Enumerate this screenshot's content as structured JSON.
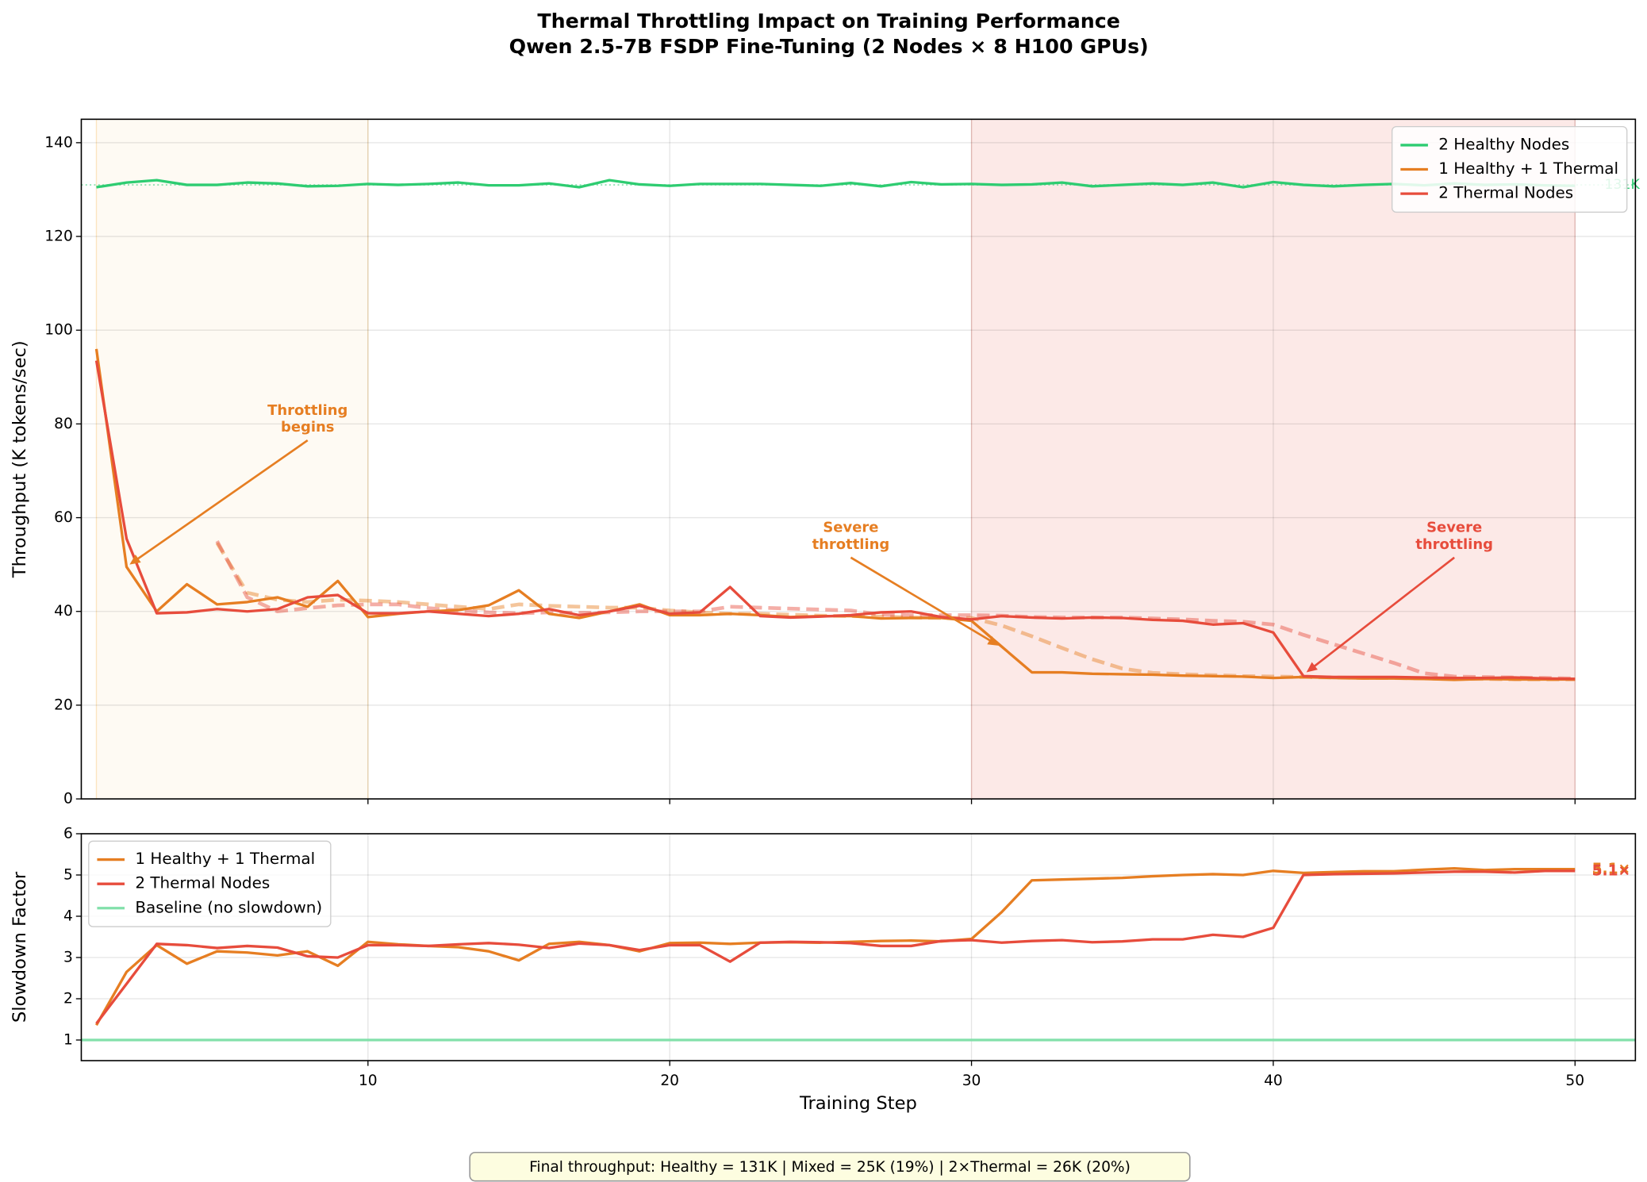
{
  "title": [
    "Thermal Throttling Impact on Training Performance",
    "Qwen 2.5-7B FSDP Fine-Tuning (2 Nodes × 8 H100 GPUs)"
  ],
  "footer": "Final throughput:  Healthy = 131K  |  Mixed = 25K (19%)  |  2×Thermal = 26K (20%)",
  "chart_data": [
    {
      "type": "line",
      "ylabel": "Throughput (K tokens/sec)",
      "x": [
        1,
        2,
        3,
        4,
        5,
        6,
        7,
        8,
        9,
        10,
        11,
        12,
        13,
        14,
        15,
        16,
        17,
        18,
        19,
        20,
        21,
        22,
        23,
        24,
        25,
        26,
        27,
        28,
        29,
        30,
        31,
        32,
        33,
        34,
        35,
        36,
        37,
        38,
        39,
        40,
        41,
        42,
        43,
        44,
        45,
        46,
        47,
        48,
        49,
        50
      ],
      "xlim": [
        0.5,
        52
      ],
      "xticks": [
        10,
        20,
        30,
        40,
        50
      ],
      "ylim": [
        0,
        145
      ],
      "yticks": [
        0,
        20,
        40,
        60,
        80,
        100,
        120,
        140
      ],
      "grid": true,
      "legend": "upper right",
      "spans": [
        {
          "x": [
            1,
            10
          ],
          "color": "#f39c12",
          "opacity": 0.05
        },
        {
          "x": [
            30,
            50
          ],
          "color": "#e74c3c",
          "opacity": 0.12
        }
      ],
      "hlines": [
        {
          "y": 131,
          "color": "#2ecc71",
          "style": "dotted",
          "label": "131K"
        }
      ],
      "series": [
        {
          "name": "2 Healthy Nodes",
          "color": "#2ecc71",
          "values": [
            130.5,
            131.5,
            132,
            131,
            131,
            131.5,
            131.3,
            130.7,
            130.8,
            131.2,
            131,
            131.2,
            131.5,
            130.9,
            130.9,
            131.3,
            130.5,
            132,
            131.1,
            130.8,
            131.2,
            131.2,
            131.2,
            131,
            130.8,
            131.4,
            130.7,
            131.6,
            131.1,
            131.2,
            131,
            131.1,
            131.5,
            130.7,
            131,
            131.3,
            131,
            131.5,
            130.5,
            131.6,
            131,
            130.7,
            131,
            131.2,
            130.9,
            131.3,
            131,
            131.1,
            130.9,
            130.8
          ]
        },
        {
          "name": "1 Healthy + 1 Thermal",
          "color": "#e67e22",
          "values": [
            96,
            49.5,
            40,
            45.8,
            41.5,
            42,
            43,
            41,
            46.5,
            38.8,
            39.5,
            40,
            40.3,
            41.3,
            44.5,
            39.5,
            38.6,
            40,
            41.5,
            39.2,
            39.2,
            39.5,
            39.2,
            38.8,
            39,
            39,
            38.5,
            38.6,
            38.6,
            38,
            32.5,
            27,
            27,
            26.7,
            26.6,
            26.5,
            26.3,
            26.2,
            26.1,
            25.8,
            26,
            25.8,
            25.7,
            25.7,
            25.6,
            25.4,
            25.6,
            25.5,
            25.5,
            25.5
          ]
        },
        {
          "name": "2 Thermal Nodes",
          "color": "#e74c3c",
          "values": [
            93.5,
            55.5,
            39.6,
            39.8,
            40.5,
            40,
            40.5,
            43,
            43.5,
            39.6,
            39.6,
            40,
            39.5,
            39,
            39.5,
            40.5,
            39.2,
            40,
            41.2,
            39.5,
            39.8,
            45.2,
            39,
            38.7,
            38.9,
            39.2,
            39.8,
            40,
            38.8,
            38.3,
            39,
            38.7,
            38.5,
            38.7,
            38.6,
            38.2,
            38,
            37.2,
            37.5,
            35.5,
            26.2,
            26,
            26,
            26,
            25.9,
            25.8,
            25.8,
            25.9,
            25.7,
            25.6
          ]
        },
        {
          "color": "#e67e22",
          "style": "dashed",
          "values": [
            null,
            null,
            null,
            null,
            54.6,
            44,
            42.5,
            42,
            42.5,
            42.3,
            42,
            41.5,
            41,
            40.5,
            41.5,
            41.2,
            41,
            40.8,
            40.8,
            40.2,
            39.8,
            39.5,
            39.5,
            39.3,
            39.1,
            39,
            38.9,
            38.7,
            38.6,
            38.6,
            37,
            34.7,
            32.2,
            29.8,
            27.8,
            26.9,
            26.6,
            26.4,
            26.2,
            26.1,
            26,
            25.9,
            25.8,
            25.8,
            25.7,
            25.6,
            25.6,
            25.5,
            25.5,
            25.5
          ]
        },
        {
          "color": "#e74c3c",
          "style": "dashed",
          "values": [
            null,
            null,
            null,
            null,
            55,
            43,
            40,
            40.7,
            41.3,
            41.5,
            41.5,
            40.7,
            40.2,
            39.8,
            39.6,
            39.8,
            39.7,
            39.8,
            40,
            40,
            40,
            41,
            40.8,
            40.6,
            40.4,
            40.2,
            39.3,
            39.2,
            39.2,
            39.2,
            39.1,
            38.8,
            38.7,
            38.7,
            38.7,
            38.5,
            38.3,
            38,
            37.8,
            37.2,
            35,
            33,
            31,
            29,
            26.8,
            26.1,
            26,
            25.9,
            25.8,
            25.7
          ]
        }
      ],
      "annotations": [
        {
          "text": [
            "Throttling",
            "begins"
          ],
          "color": "#e67e22",
          "xy": [
            2.1,
            50
          ],
          "xytext": [
            8,
            81
          ]
        },
        {
          "text": [
            "Severe",
            "throttling"
          ],
          "color": "#e67e22",
          "xy": [
            30.9,
            32.7
          ],
          "xytext": [
            26,
            56
          ]
        },
        {
          "text": [
            "Severe",
            "throttling"
          ],
          "color": "#e74c3c",
          "xy": [
            41.1,
            27
          ],
          "xytext": [
            46,
            56
          ]
        }
      ]
    },
    {
      "type": "line",
      "ylabel": "Slowdown Factor",
      "xlabel": "Training Step",
      "x": [
        1,
        2,
        3,
        4,
        5,
        6,
        7,
        8,
        9,
        10,
        11,
        12,
        13,
        14,
        15,
        16,
        17,
        18,
        19,
        20,
        21,
        22,
        23,
        24,
        25,
        26,
        27,
        28,
        29,
        30,
        31,
        32,
        33,
        34,
        35,
        36,
        37,
        38,
        39,
        40,
        41,
        42,
        43,
        44,
        45,
        46,
        47,
        48,
        49,
        50
      ],
      "xlim": [
        0.5,
        52
      ],
      "xticks": [
        10,
        20,
        30,
        40,
        50
      ],
      "ylim": [
        0.5,
        6
      ],
      "yticks": [
        1,
        2,
        3,
        4,
        5,
        6
      ],
      "grid": true,
      "legend": "upper left",
      "hlines": [
        {
          "y": 1,
          "color": "#82e0aa",
          "name": "Baseline (no slowdown)"
        }
      ],
      "series": [
        {
          "name": "1 Healthy + 1 Thermal",
          "color": "#e67e22",
          "end_label": "5.1×",
          "values": [
            1.36,
            2.65,
            3.3,
            2.85,
            3.15,
            3.12,
            3.05,
            3.15,
            2.8,
            3.38,
            3.32,
            3.28,
            3.25,
            3.15,
            2.93,
            3.33,
            3.38,
            3.3,
            3.15,
            3.35,
            3.36,
            3.33,
            3.36,
            3.37,
            3.36,
            3.38,
            3.4,
            3.41,
            3.39,
            3.45,
            4.1,
            4.87,
            4.89,
            4.91,
            4.93,
            4.97,
            5,
            5.02,
            5,
            5.1,
            5.05,
            5.07,
            5.09,
            5.09,
            5.13,
            5.16,
            5.12,
            5.14,
            5.14,
            5.14
          ]
        },
        {
          "name": "2 Thermal Nodes",
          "color": "#e74c3c",
          "end_label": "5.1×",
          "values": [
            1.4,
            2.36,
            3.33,
            3.3,
            3.23,
            3.28,
            3.24,
            3.03,
            3,
            3.3,
            3.3,
            3.28,
            3.32,
            3.35,
            3.31,
            3.23,
            3.34,
            3.3,
            3.18,
            3.3,
            3.3,
            2.9,
            3.36,
            3.38,
            3.37,
            3.35,
            3.28,
            3.28,
            3.4,
            3.42,
            3.36,
            3.4,
            3.42,
            3.37,
            3.39,
            3.44,
            3.44,
            3.55,
            3.5,
            3.72,
            5,
            5.02,
            5.03,
            5.04,
            5.06,
            5.08,
            5.08,
            5.06,
            5.1,
            5.1
          ]
        }
      ]
    }
  ]
}
